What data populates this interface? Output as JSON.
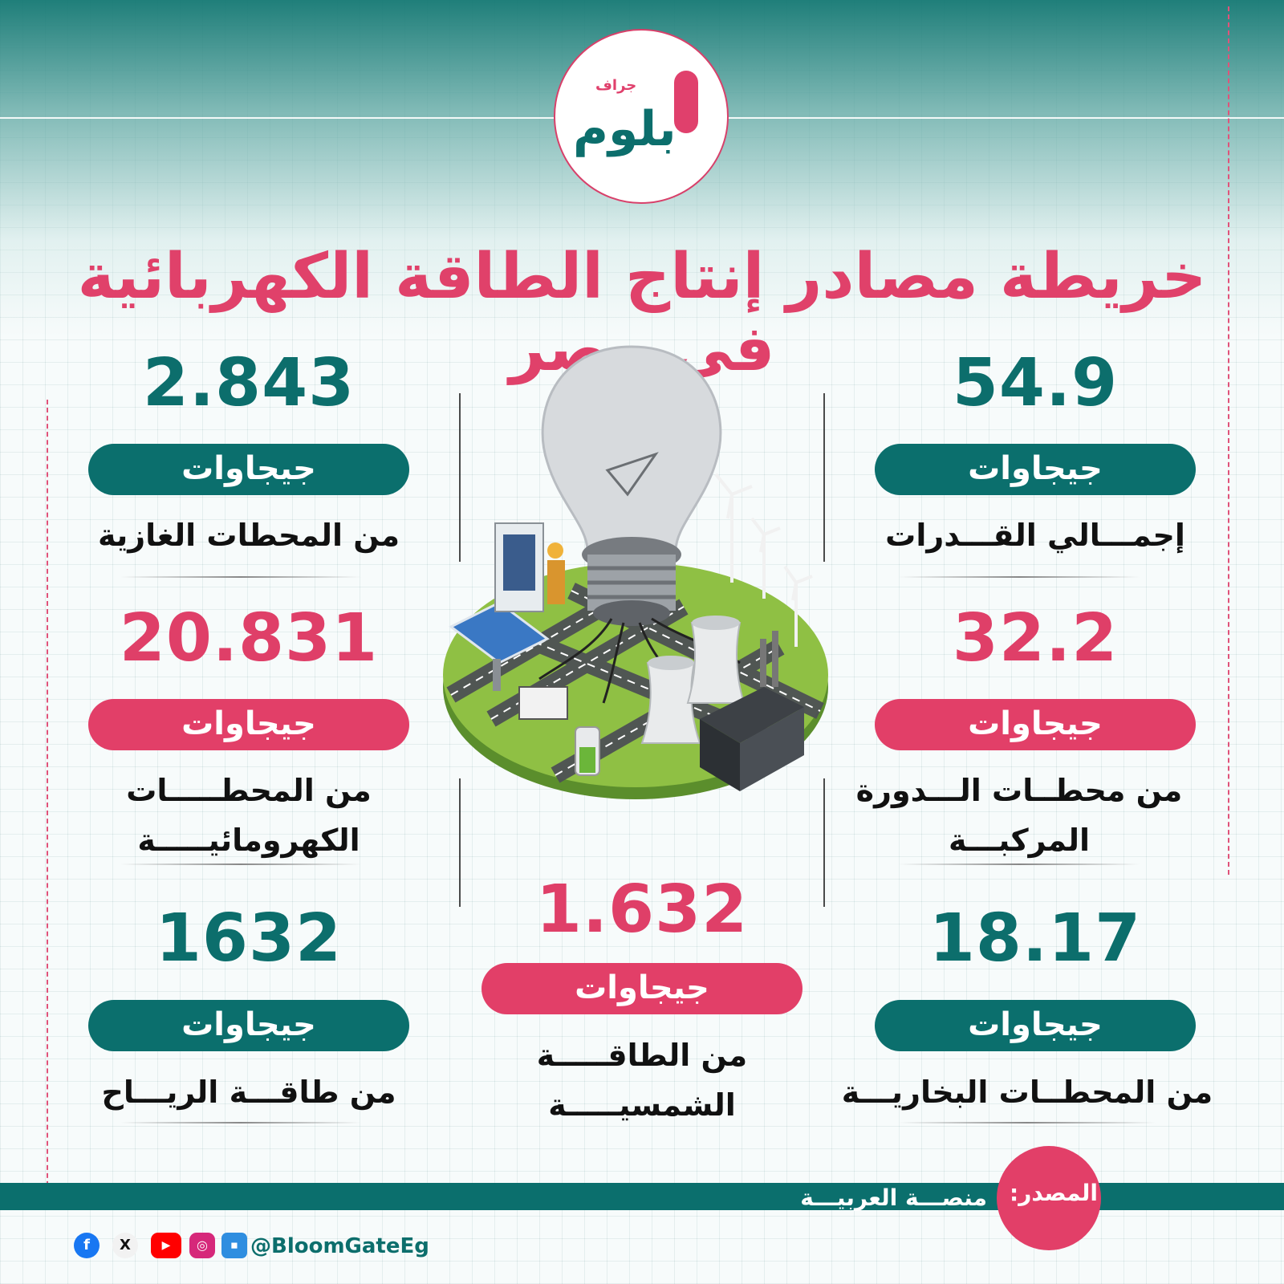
{
  "brand": {
    "logo_sub": "جراف",
    "logo_main": "بلوم"
  },
  "title": "خريطة مصادر إنتاج الطاقة الكهربائية في مصر",
  "stats": {
    "total": {
      "value": "54.9",
      "unit": "جيجاوات",
      "desc": "إجمـــالي القـــدرات"
    },
    "combined_cycle": {
      "value": "32.2",
      "unit": "جيجاوات",
      "desc_line1": "من محطــات الـــدورة",
      "desc_line2": "المركبـــة"
    },
    "steam": {
      "value": "18.17",
      "unit": "جيجاوات",
      "desc": "من المحطــات البخاريـــة"
    },
    "gas": {
      "value": "2.843",
      "unit": "جيجاوات",
      "desc": "من المحطات الغازية"
    },
    "hydro": {
      "value": "20.831",
      "unit": "جيجاوات",
      "desc_line1": "من المحطـــــات",
      "desc_line2": "الكهرومائيـــــة"
    },
    "wind": {
      "value": "1632",
      "unit": "جيجاوات",
      "desc": "من طاقـــة الريـــاح"
    },
    "solar": {
      "value": "1.632",
      "unit": "جيجاوات",
      "desc_line1": "من الطاقـــــة",
      "desc_line2": "الشمسيـــــة"
    }
  },
  "footer": {
    "source_label": "المصدر:",
    "source_value": "منصـــة العربيـــة",
    "handle": "@BloomGateEg",
    "social_icons": [
      "facebook-icon",
      "x-icon",
      "youtube-icon",
      "instagram-icon",
      "nabd-icon"
    ]
  },
  "colors": {
    "teal": "#0b6f6d",
    "pink": "#e23f68"
  }
}
